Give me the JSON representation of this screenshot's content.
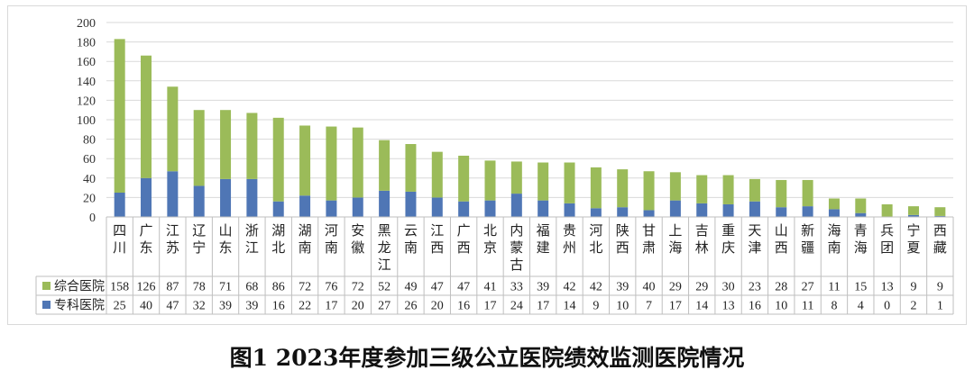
{
  "caption": "图1  2023年度参加三级公立医院绩效监测医院情况",
  "chart_data": {
    "type": "bar",
    "stacked": true,
    "categories": [
      "四川",
      "广东",
      "江苏",
      "辽宁",
      "山东",
      "浙江",
      "湖北",
      "湖南",
      "河南",
      "安徽",
      "黑龙江",
      "云南",
      "江西",
      "广西",
      "北京",
      "内蒙古",
      "福建",
      "贵州",
      "河北",
      "陕西",
      "甘肃",
      "上海",
      "吉林",
      "重庆",
      "天津",
      "山西",
      "新疆",
      "海南",
      "青海",
      "兵团",
      "宁夏",
      "西藏"
    ],
    "series": [
      {
        "name": "专科医院",
        "color": "#4f76b5",
        "values": [
          25,
          40,
          47,
          32,
          39,
          39,
          16,
          22,
          17,
          20,
          27,
          26,
          20,
          16,
          17,
          24,
          17,
          14,
          9,
          10,
          7,
          17,
          14,
          13,
          16,
          10,
          11,
          8,
          4,
          0,
          2,
          1
        ]
      },
      {
        "name": "综合医院",
        "color": "#9bbb59",
        "values": [
          158,
          126,
          87,
          78,
          71,
          68,
          86,
          72,
          76,
          72,
          52,
          49,
          47,
          47,
          41,
          33,
          39,
          42,
          42,
          39,
          40,
          29,
          29,
          30,
          23,
          28,
          27,
          11,
          15,
          13,
          9,
          9
        ]
      }
    ],
    "table_order": [
      "综合医院",
      "专科医院"
    ],
    "ylim": [
      0,
      200
    ],
    "yticks": [
      0,
      20,
      40,
      60,
      80,
      100,
      120,
      140,
      160,
      180,
      200
    ],
    "grid": true,
    "legend": "data-table"
  }
}
